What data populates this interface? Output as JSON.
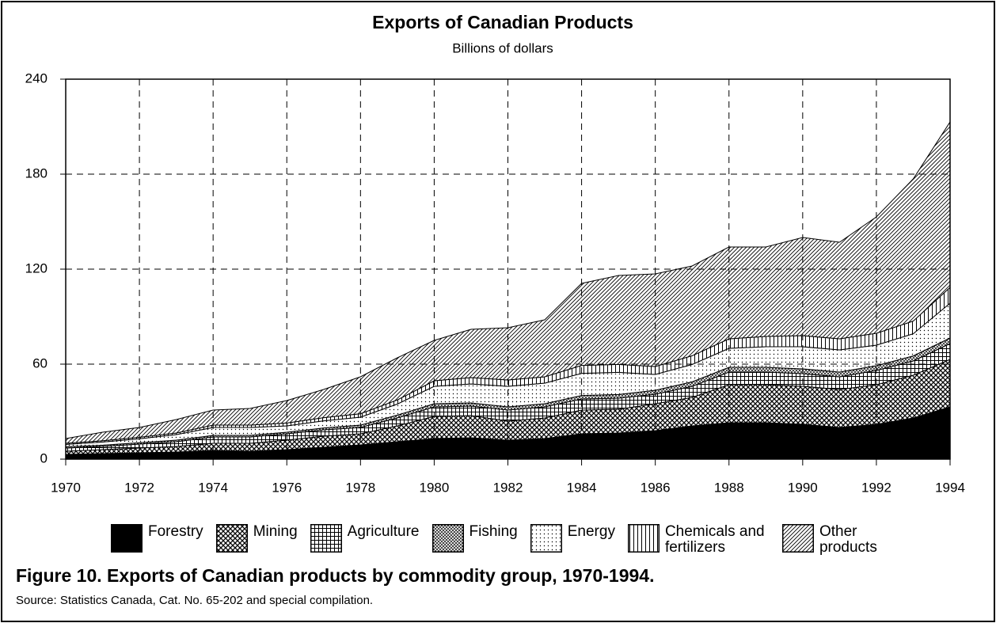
{
  "chart_data": {
    "type": "stacked_area",
    "title": "Exports of Canadian Products",
    "subtitle": "Billions of dollars",
    "caption": "Figure 10.  Exports of Canadian products by commodity group, 1970-1994.",
    "source": "Source:  Statistics Canada, Cat. No. 65-202 and special compilation.",
    "x": [
      1970,
      1971,
      1972,
      1973,
      1974,
      1975,
      1976,
      1977,
      1978,
      1979,
      1980,
      1981,
      1982,
      1983,
      1984,
      1985,
      1986,
      1987,
      1988,
      1989,
      1990,
      1991,
      1992,
      1993,
      1994
    ],
    "xlim": [
      1970,
      1994
    ],
    "xticks": [
      1970,
      1972,
      1974,
      1976,
      1978,
      1980,
      1982,
      1984,
      1986,
      1988,
      1990,
      1992,
      1994
    ],
    "ylim": [
      0,
      240
    ],
    "yticks": [
      0,
      60,
      120,
      180,
      240
    ],
    "grid": true,
    "series": [
      {
        "name": "Forestry",
        "color": "#000000",
        "values": [
          3,
          3.5,
          4,
          4.5,
          5.5,
          5,
          6,
          7.5,
          9,
          11,
          13,
          13.5,
          12,
          13,
          16,
          16.5,
          18,
          21,
          23,
          23,
          22,
          20,
          22,
          26,
          33
        ]
      },
      {
        "name": "Mining",
        "color": "#808080",
        "values": [
          2,
          2.5,
          3,
          3.5,
          4.5,
          5,
          6,
          7,
          7,
          10,
          14,
          14,
          12,
          13,
          15,
          15,
          17,
          18,
          24,
          24,
          24,
          24,
          25,
          27,
          30
        ]
      },
      {
        "name": "Agriculture",
        "color": "#a0a0a0",
        "values": [
          2,
          2,
          2.5,
          3,
          4,
          4,
          4,
          4,
          4,
          5,
          6,
          6,
          7,
          7,
          7,
          7,
          6,
          7,
          8,
          8,
          8,
          8,
          9,
          9,
          10
        ]
      },
      {
        "name": "Fishing",
        "color": "#303030",
        "values": [
          0.8,
          0.8,
          0.9,
          1,
          1,
          1,
          1,
          1.2,
          1.5,
          1.8,
          2,
          2,
          2,
          2,
          2.2,
          2.3,
          2.5,
          2.8,
          3,
          3,
          3,
          3,
          3,
          3.2,
          3.5
        ]
      },
      {
        "name": "Energy",
        "color": "#e0e0e0",
        "values": [
          1.5,
          2,
          2.5,
          3.5,
          5,
          5,
          4,
          4.5,
          5,
          7,
          11,
          12,
          13,
          13,
          14,
          14,
          10,
          11,
          12,
          13,
          14,
          14,
          13,
          14,
          22
        ]
      },
      {
        "name": "Chemicals and fertilizers",
        "color": "#c0c0c0",
        "values": [
          0.7,
          0.8,
          0.9,
          1,
          1.5,
          1.5,
          1.8,
          2,
          2.2,
          2.6,
          3.5,
          4,
          4,
          4,
          5,
          5,
          5,
          5.5,
          6,
          6.5,
          7,
          7,
          7.5,
          8,
          10
        ]
      },
      {
        "name": "Other products",
        "color": "#b0b0b0",
        "values": [
          3,
          5.4,
          6.2,
          8.5,
          9.5,
          10.5,
          14.2,
          17.8,
          23.3,
          26.6,
          25.5,
          30.5,
          33,
          36,
          51.8,
          56.2,
          58.5,
          56.7,
          58,
          56.5,
          62,
          61,
          73.5,
          89.8,
          104.5
        ]
      }
    ]
  }
}
